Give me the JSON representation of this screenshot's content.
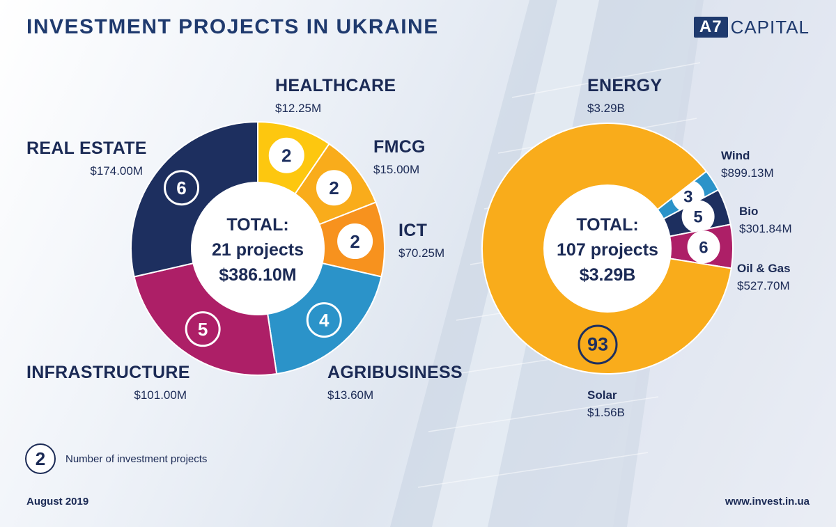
{
  "header": {
    "title": "INVESTMENT PROJECTS IN UKRAINE",
    "logo_mark": "A7",
    "logo_text": "CAPITAL"
  },
  "chart_data": [
    {
      "type": "pie",
      "categories": [
        "HEALTHCARE",
        "FMCG",
        "ICT",
        "AGRIBUSINESS",
        "INFRASTRUCTURE",
        "REAL ESTATE"
      ],
      "values": [
        2,
        2,
        2,
        4,
        5,
        6
      ],
      "amounts": [
        "$12.25M",
        "$15.00M",
        "$70.25M",
        "$13.60M",
        "$101.00M",
        "$174.00M"
      ],
      "colors": [
        "#fdc70f",
        "#f9ac1b",
        "#f7921e",
        "#2b93c9",
        "#ad1f67",
        "#1d2f5f"
      ],
      "center": {
        "line1": "TOTAL:",
        "line2": "21 projects",
        "line3": "$386.10M"
      }
    },
    {
      "type": "pie",
      "title": "ENERGY",
      "title_value": "$3.29B",
      "categories": [
        "Wind",
        "Bio",
        "Oil & Gas",
        "Solar"
      ],
      "values": [
        3,
        5,
        6,
        93
      ],
      "amounts": [
        "$899.13M",
        "$301.84M",
        "$527.70M",
        "$1.56B"
      ],
      "colors": [
        "#2b93c9",
        "#1d2f5f",
        "#ad1f67",
        "#f9ac1b"
      ],
      "center": {
        "line1": "TOTAL:",
        "line2": "107 projects",
        "line3": "$3.29B"
      }
    }
  ],
  "legend": {
    "sample": "2",
    "text": "Number of investment projects"
  },
  "footer": {
    "date": "August 2019",
    "url": "www.invest.in.ua"
  }
}
